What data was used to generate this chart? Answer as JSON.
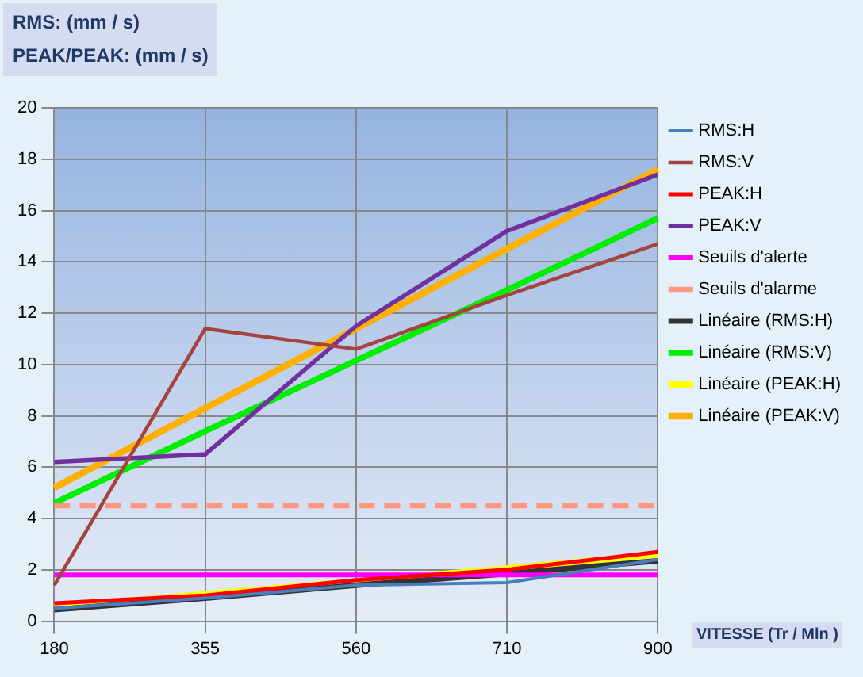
{
  "chart_data": {
    "type": "line",
    "ylabel": "RMS: (mm / s)\nPEAK/PEAK: (mm / s)",
    "xlabel": "VITESSE (Tr /  Mln )",
    "categories": [
      "180",
      "355",
      "560",
      "710",
      "900"
    ],
    "series": [
      {
        "name": "RMS:H",
        "color": "#4a7ebb",
        "values": [
          0.5,
          0.9,
          1.4,
          1.5,
          2.4
        ]
      },
      {
        "name": "RMS:V",
        "color": "#a5433f",
        "values": [
          1.4,
          11.4,
          10.6,
          12.7,
          14.7
        ]
      },
      {
        "name": "PEAK:H",
        "color": "#ff0000",
        "values": [
          0.7,
          1.0,
          1.6,
          2.0,
          2.7
        ]
      },
      {
        "name": "PEAK:V",
        "color": "#7030a0",
        "values": [
          6.2,
          6.5,
          11.5,
          15.2,
          17.4
        ]
      },
      {
        "name": "Seuils d'alerte",
        "color": "#ff00ff",
        "values": [
          1.8,
          1.8,
          1.8,
          1.8,
          1.8
        ]
      },
      {
        "name": "Seuils d'alarme",
        "color": "#ff9680",
        "line_style": "dashed",
        "values": [
          4.5,
          4.5,
          4.5,
          4.5,
          4.5
        ]
      },
      {
        "name": "Linéaire (RMS:H)",
        "color": "#333333",
        "values": [
          0.45,
          0.9,
          1.4,
          1.85,
          2.35
        ]
      },
      {
        "name": "Linéaire (RMS:V)",
        "color": "#00ee00",
        "values": [
          4.6,
          7.4,
          10.15,
          12.9,
          15.7
        ]
      },
      {
        "name": "Linéaire (PEAK:H)",
        "color": "#ffff00",
        "values": [
          0.55,
          1.05,
          1.55,
          2.05,
          2.6
        ]
      },
      {
        "name": "Linéaire (PEAK:V)",
        "color": "#ffb000",
        "values": [
          5.2,
          8.3,
          11.4,
          14.5,
          17.6
        ]
      }
    ],
    "ylim": [
      0,
      20
    ],
    "yticks": [
      0,
      2,
      4,
      6,
      8,
      10,
      12,
      14,
      16,
      18,
      20
    ],
    "grid": true,
    "legend": "right",
    "marker": "none",
    "line_style": "solid"
  }
}
